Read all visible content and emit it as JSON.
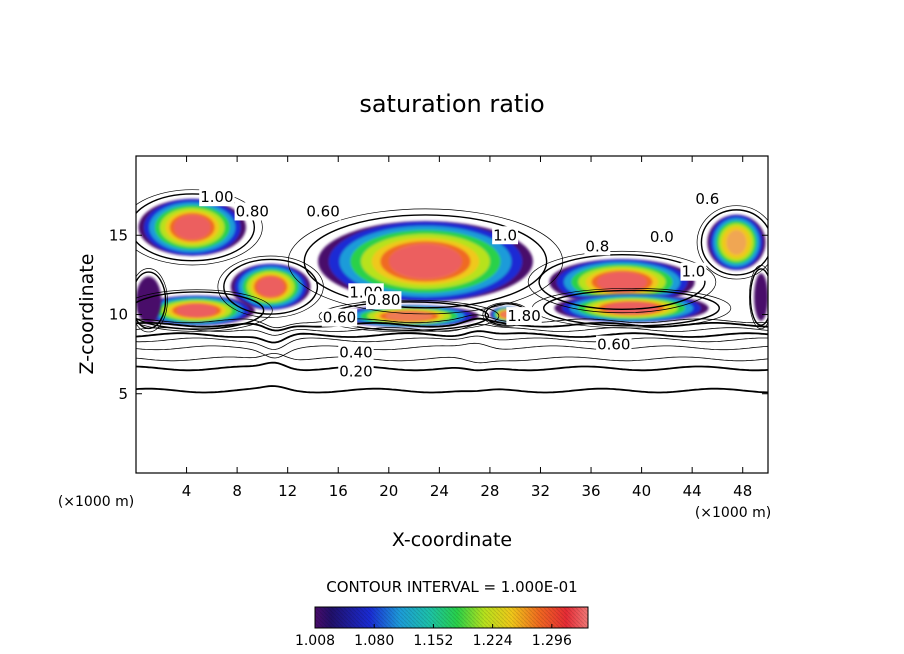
{
  "chart_data": {
    "type": "heatmap",
    "title": "saturation ratio",
    "xlabel": "X-coordinate",
    "ylabel": "Z-coordinate",
    "x_unit_left": "(×1000 m)",
    "x_unit_right": "(×1000 m)",
    "xlim": [
      0,
      50
    ],
    "ylim": [
      0,
      20
    ],
    "x_ticks": [
      4,
      8,
      12,
      16,
      20,
      24,
      28,
      32,
      36,
      40,
      44,
      48
    ],
    "y_ticks": [
      5,
      10,
      15
    ],
    "contour_interval_text": "CONTOUR INTERVAL = 1.000E-01",
    "colorbar": {
      "range": [
        1.008,
        1.34
      ],
      "ticks": [
        1.008,
        1.08,
        1.152,
        1.224,
        1.296
      ],
      "tick_labels": [
        "1.008",
        "1.080",
        "1.152",
        "1.224",
        "1.296"
      ]
    },
    "contour_labels": [
      {
        "text": "1.00",
        "x": 6.4,
        "z": 17.4
      },
      {
        "text": "0.80",
        "x": 9.2,
        "z": 16.5
      },
      {
        "text": "0.60",
        "x": 14.8,
        "z": 16.5
      },
      {
        "text": "1.0",
        "x": 29.2,
        "z": 15.0
      },
      {
        "text": "0.6",
        "x": 45.2,
        "z": 17.3
      },
      {
        "text": "0.8",
        "x": 36.5,
        "z": 14.3
      },
      {
        "text": "0.0",
        "x": 41.6,
        "z": 14.9
      },
      {
        "text": "1.0",
        "x": 44.1,
        "z": 12.7
      },
      {
        "text": "1.00",
        "x": 18.2,
        "z": 11.4
      },
      {
        "text": "0.80",
        "x": 19.6,
        "z": 10.9
      },
      {
        "text": "0.60",
        "x": 16.1,
        "z": 9.8
      },
      {
        "text": "1.80",
        "x": 30.7,
        "z": 9.9
      },
      {
        "text": "0.60",
        "x": 37.8,
        "z": 8.1
      },
      {
        "text": "0.40",
        "x": 17.4,
        "z": 7.6
      },
      {
        "text": "0.20",
        "x": 17.4,
        "z": 6.4
      }
    ],
    "filled_regions": [
      {
        "x": [
          0.2,
          8.7
        ],
        "z": [
          13.7,
          17.3
        ],
        "peak": 1.31
      },
      {
        "x": [
          7.5,
          13.8
        ],
        "z": [
          10.3,
          13.2
        ],
        "peak": 1.3
      },
      {
        "x": [
          14.4,
          31.4
        ],
        "z": [
          10.8,
          15.9
        ],
        "peak": 1.32
      },
      {
        "x": [
          32.7,
          44.2
        ],
        "z": [
          10.6,
          13.5
        ],
        "peak": 1.29
      },
      {
        "x": [
          33.1,
          45.3
        ],
        "z": [
          9.5,
          11.3
        ],
        "peak": 1.29
      },
      {
        "x": [
          0.2,
          9.4
        ],
        "z": [
          9.3,
          11.2
        ],
        "peak": 1.27
      },
      {
        "x": [
          16.1,
          27.1
        ],
        "z": [
          9.2,
          10.6
        ],
        "peak": 1.25
      },
      {
        "x": [
          28.0,
          30.6
        ],
        "z": [
          9.5,
          10.5
        ],
        "peak": 1.25
      },
      {
        "x": [
          45.2,
          49.8
        ],
        "z": [
          12.8,
          16.3
        ],
        "peak": 1.22
      },
      {
        "x": [
          0.0,
          2.0
        ],
        "z": [
          9.4,
          12.4
        ],
        "peak": 1.03
      },
      {
        "x": [
          48.9,
          50.0
        ],
        "z": [
          9.6,
          12.6
        ],
        "peak": 1.03
      }
    ],
    "contour_lines": [
      {
        "level": 0.1,
        "z": 5.2,
        "weight": "heavy"
      },
      {
        "level": 0.2,
        "z": 6.6,
        "weight": "heavy"
      },
      {
        "level": 0.3,
        "z": 7.2,
        "weight": "thin"
      },
      {
        "level": 0.4,
        "z": 7.9,
        "weight": "thin"
      },
      {
        "level": 0.5,
        "z": 8.4,
        "weight": "thin"
      },
      {
        "level": 0.6,
        "z": 8.7,
        "weight": "heavy"
      },
      {
        "level": 0.7,
        "z": 9.05,
        "weight": "thin"
      },
      {
        "level": 0.8,
        "z": 9.35,
        "weight": "heavy"
      },
      {
        "level": 0.9,
        "z": 9.6,
        "weight": "thin"
      }
    ],
    "grid": false,
    "legend": "bottom-center colorbar"
  }
}
